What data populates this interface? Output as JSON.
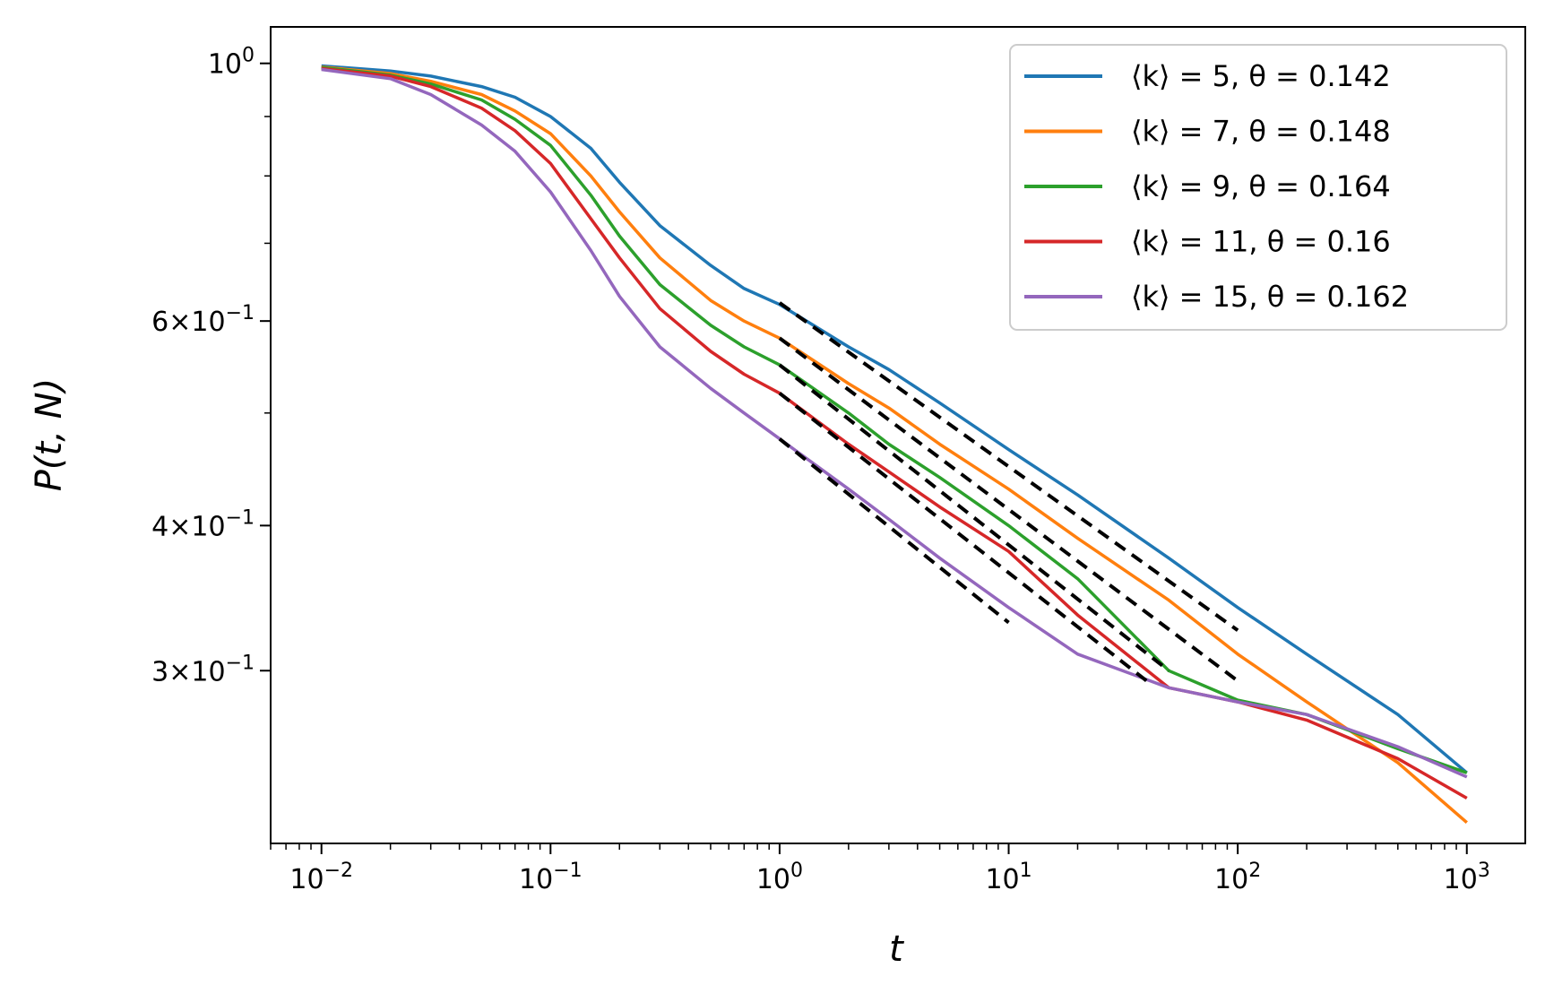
{
  "chart_data": {
    "type": "line",
    "xscale": "log",
    "yscale": "log",
    "xlabel": "t",
    "ylabel": "P(t, N)",
    "xlim": [
      0.006,
      1800
    ],
    "ylim": [
      0.213,
      1.075
    ],
    "x_ticks": [
      {
        "value": 0.01,
        "mantissa": "10",
        "exp": "−2"
      },
      {
        "value": 0.1,
        "mantissa": "10",
        "exp": "−1"
      },
      {
        "value": 1,
        "mantissa": "10",
        "exp": "0"
      },
      {
        "value": 10,
        "mantissa": "10",
        "exp": "1"
      },
      {
        "value": 100,
        "mantissa": "10",
        "exp": "2"
      },
      {
        "value": 1000,
        "mantissa": "10",
        "exp": "3"
      }
    ],
    "y_ticks": [
      {
        "value": 1.0,
        "coef": "",
        "mantissa": "10",
        "exp": "0"
      },
      {
        "value": 0.6,
        "coef": "6×",
        "mantissa": "10",
        "exp": "−1"
      },
      {
        "value": 0.4,
        "coef": "4×",
        "mantissa": "10",
        "exp": "−1"
      },
      {
        "value": 0.3,
        "coef": "3×",
        "mantissa": "10",
        "exp": "−1"
      }
    ],
    "legend_position": "top-right",
    "series": [
      {
        "name": "⟨k⟩ = 5, θ = 0.142",
        "color": "#1f77b4",
        "x": [
          0.01,
          0.02,
          0.03,
          0.05,
          0.07,
          0.1,
          0.15,
          0.2,
          0.3,
          0.5,
          0.7,
          1,
          2,
          3,
          5,
          10,
          20,
          50,
          100,
          200,
          500,
          1000
        ],
        "y": [
          0.995,
          0.985,
          0.975,
          0.955,
          0.935,
          0.9,
          0.845,
          0.79,
          0.725,
          0.67,
          0.64,
          0.62,
          0.57,
          0.545,
          0.51,
          0.465,
          0.425,
          0.375,
          0.34,
          0.31,
          0.275,
          0.245
        ],
        "fit": {
          "x": [
            1,
            100
          ],
          "y": [
            0.622,
            0.325
          ]
        }
      },
      {
        "name": "⟨k⟩ = 7, θ = 0.148",
        "color": "#ff7f0e",
        "x": [
          0.01,
          0.02,
          0.03,
          0.05,
          0.07,
          0.1,
          0.15,
          0.2,
          0.3,
          0.5,
          0.7,
          1,
          2,
          3,
          5,
          10,
          20,
          50,
          100,
          200,
          500,
          1000
        ],
        "y": [
          0.993,
          0.98,
          0.965,
          0.94,
          0.91,
          0.87,
          0.8,
          0.745,
          0.68,
          0.625,
          0.6,
          0.58,
          0.53,
          0.505,
          0.47,
          0.43,
          0.39,
          0.345,
          0.31,
          0.282,
          0.25,
          0.222
        ],
        "fit": {
          "x": [
            1,
            100
          ],
          "y": [
            0.58,
            0.294
          ]
        }
      },
      {
        "name": "⟨k⟩ = 9, θ = 0.164",
        "color": "#2ca02c",
        "x": [
          0.01,
          0.02,
          0.03,
          0.05,
          0.07,
          0.1,
          0.15,
          0.2,
          0.3,
          0.5,
          0.7,
          1,
          2,
          3,
          5,
          10,
          20,
          50,
          100,
          200,
          500,
          1000
        ],
        "y": [
          0.992,
          0.977,
          0.96,
          0.93,
          0.895,
          0.85,
          0.77,
          0.71,
          0.645,
          0.595,
          0.57,
          0.55,
          0.5,
          0.47,
          0.44,
          0.4,
          0.36,
          0.3,
          0.283,
          0.275,
          0.257,
          0.245
        ],
        "fit": {
          "x": [
            1,
            50
          ],
          "y": [
            0.55,
            0.3
          ]
        }
      },
      {
        "name": "⟨k⟩ = 11, θ = 0.16",
        "color": "#d62728",
        "x": [
          0.01,
          0.02,
          0.03,
          0.05,
          0.07,
          0.1,
          0.15,
          0.2,
          0.3,
          0.5,
          0.7,
          1,
          2,
          3,
          5,
          10,
          20,
          50,
          100,
          200,
          500,
          1000
        ],
        "y": [
          0.99,
          0.975,
          0.955,
          0.915,
          0.875,
          0.82,
          0.735,
          0.68,
          0.615,
          0.565,
          0.54,
          0.52,
          0.47,
          0.445,
          0.415,
          0.38,
          0.335,
          0.29,
          0.282,
          0.272,
          0.252,
          0.233
        ],
        "fit": {
          "x": [
            1,
            40
          ],
          "y": [
            0.52,
            0.294
          ]
        }
      },
      {
        "name": "⟨k⟩ = 15, θ = 0.162",
        "color": "#9467bd",
        "x": [
          0.01,
          0.02,
          0.03,
          0.05,
          0.07,
          0.1,
          0.15,
          0.2,
          0.3,
          0.5,
          0.7,
          1,
          2,
          3,
          5,
          10,
          20,
          50,
          100,
          200,
          500,
          1000
        ],
        "y": [
          0.988,
          0.97,
          0.94,
          0.885,
          0.84,
          0.775,
          0.69,
          0.63,
          0.57,
          0.525,
          0.5,
          0.475,
          0.43,
          0.405,
          0.375,
          0.34,
          0.31,
          0.29,
          0.282,
          0.275,
          0.258,
          0.243
        ],
        "fit": {
          "x": [
            1,
            10
          ],
          "y": [
            0.475,
            0.33
          ]
        }
      }
    ]
  }
}
